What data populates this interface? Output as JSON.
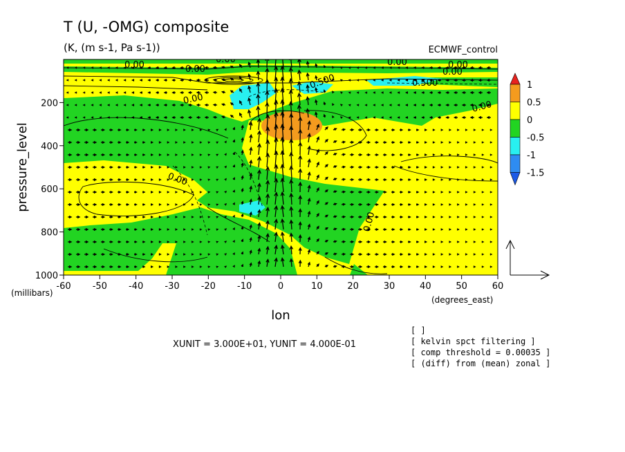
{
  "header": {
    "title": "T (U, -OMG) composite",
    "units": "(K, (m s-1, Pa s-1))",
    "dataset": "ECMWF_control"
  },
  "chart_data": {
    "type": "heatmap",
    "xlabel": "lon",
    "xunit": "(degrees_east)",
    "ylabel": "pressure_level",
    "yunit": "(millibars)",
    "xlim": [
      -60,
      60
    ],
    "ylim": [
      1000,
      0
    ],
    "xticks": [
      "-60",
      "-50",
      "-40",
      "-30",
      "-20",
      "-10",
      "0",
      "10",
      "20",
      "30",
      "40",
      "50",
      "60"
    ],
    "yticks": [
      "200",
      "400",
      "600",
      "800",
      "1000"
    ],
    "colorbar": {
      "labels": [
        "1",
        "0.5",
        "0",
        "-0.5",
        "-1",
        "-1.5"
      ],
      "colors": [
        "#e8231f",
        "#f49b1e",
        "#ffff00",
        "#22d422",
        "#28f0f0",
        "#2e8cf2",
        "#1c5ae6"
      ]
    },
    "contour_labels": [
      "0.00",
      "0.00",
      "0.00",
      "0.00",
      "0.00",
      "0.00",
      "0.00",
      "0.500",
      "0.500",
      "0.00",
      "0.00"
    ],
    "vector_reference": "XUNIT = 3.000E+01, YUNIT = 4.000E-01",
    "filtering_notes": [
      "[  ]",
      "[ kelvin spct filtering ]",
      "[ comp threshold = 0.00035 ]",
      "[ (diff) from (mean) zonal ]"
    ]
  }
}
